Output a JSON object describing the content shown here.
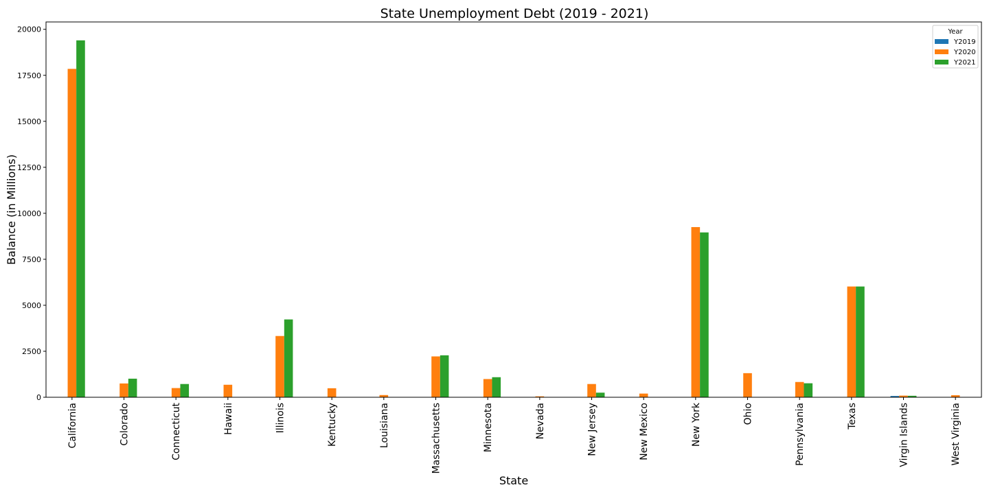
{
  "chart_data": {
    "type": "bar",
    "title": "State Unemployment Debt (2019 - 2021)",
    "xlabel": "State",
    "ylabel": "Balance (in Millions)",
    "ylim": [
      0,
      20400
    ],
    "yticks": [
      0,
      2500,
      5000,
      7500,
      10000,
      12500,
      15000,
      17500,
      20000
    ],
    "grid": false,
    "legend": {
      "title": "Year",
      "position": "top-right"
    },
    "categories": [
      "California",
      "Colorado",
      "Connecticut",
      "Hawaii",
      "Illinois",
      "Kentucky",
      "Louisiana",
      "Massachusetts",
      "Minnesota",
      "Nevada",
      "New Jersey",
      "New Mexico",
      "New York",
      "Ohio",
      "Pennsylvania",
      "Texas",
      "Virgin Islands",
      "West Virginia"
    ],
    "series": [
      {
        "name": "Y2019",
        "color": "#1f77b4",
        "values": [
          0,
          0,
          0,
          0,
          0,
          0,
          0,
          0,
          0,
          0,
          0,
          0,
          0,
          0,
          0,
          0,
          70,
          0
        ]
      },
      {
        "name": "Y2020",
        "color": "#ff7f0e",
        "values": [
          17850,
          750,
          500,
          680,
          3330,
          490,
          120,
          2220,
          990,
          50,
          720,
          200,
          9250,
          1310,
          830,
          6020,
          90,
          110
        ]
      },
      {
        "name": "Y2021",
        "color": "#2ca02c",
        "values": [
          19400,
          1010,
          720,
          0,
          4230,
          0,
          0,
          2280,
          1090,
          0,
          250,
          0,
          8960,
          0,
          760,
          6020,
          80,
          0
        ]
      }
    ]
  }
}
